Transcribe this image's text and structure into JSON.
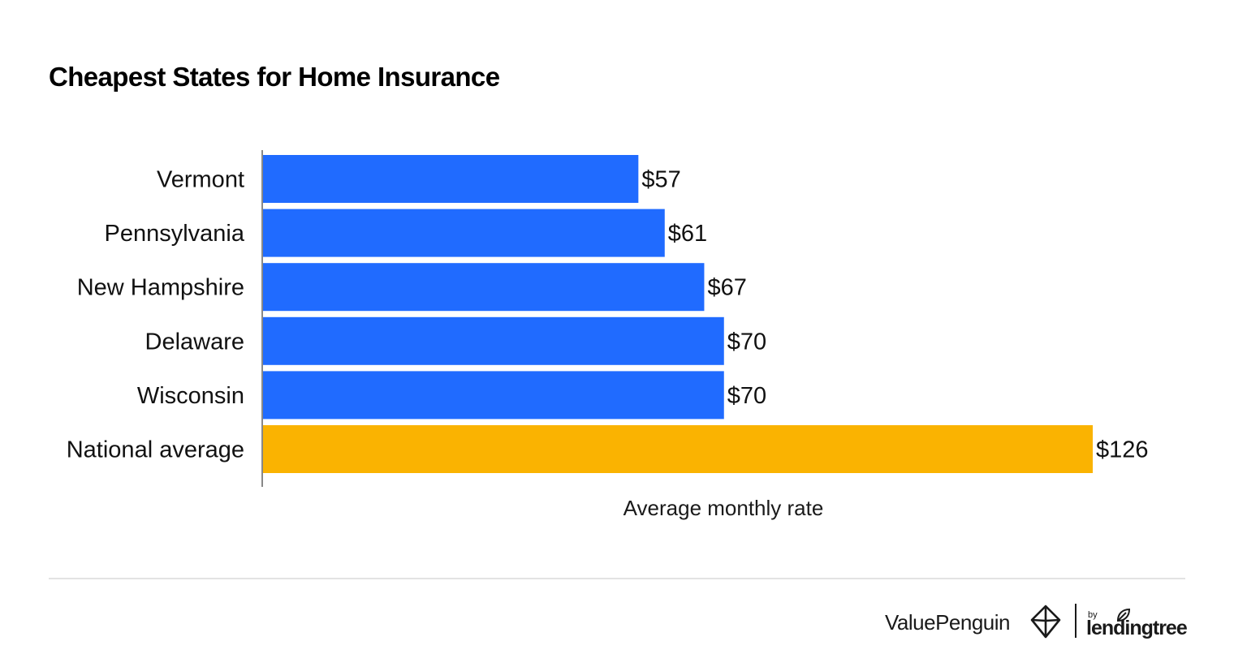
{
  "chart_data": {
    "type": "bar",
    "orientation": "horizontal",
    "title": "Cheapest States for Home Insurance",
    "xlabel": "Average monthly rate",
    "ylabel": "",
    "xlim": [
      0,
      126
    ],
    "grid": false,
    "categories": [
      "Vermont",
      "Pennsylvania",
      "New Hampshire",
      "Delaware",
      "Wisconsin",
      "National average"
    ],
    "values": [
      57,
      61,
      67,
      70,
      70,
      126
    ],
    "value_labels": [
      "$57",
      "$61",
      "$67",
      "$70",
      "$70",
      "$126"
    ],
    "bar_colors": [
      "#206bff",
      "#206bff",
      "#206bff",
      "#206bff",
      "#206bff",
      "#fab301"
    ]
  },
  "colors": {
    "state_bar": "#206bff",
    "national_bar": "#fab301",
    "axis": "#888888",
    "divider": "#e3e3e3"
  },
  "footer": {
    "brand": "ValuePenguin",
    "by": "by",
    "partner": "lendingtree",
    "icons": [
      "penguin-logo-icon",
      "leaf-icon"
    ]
  }
}
